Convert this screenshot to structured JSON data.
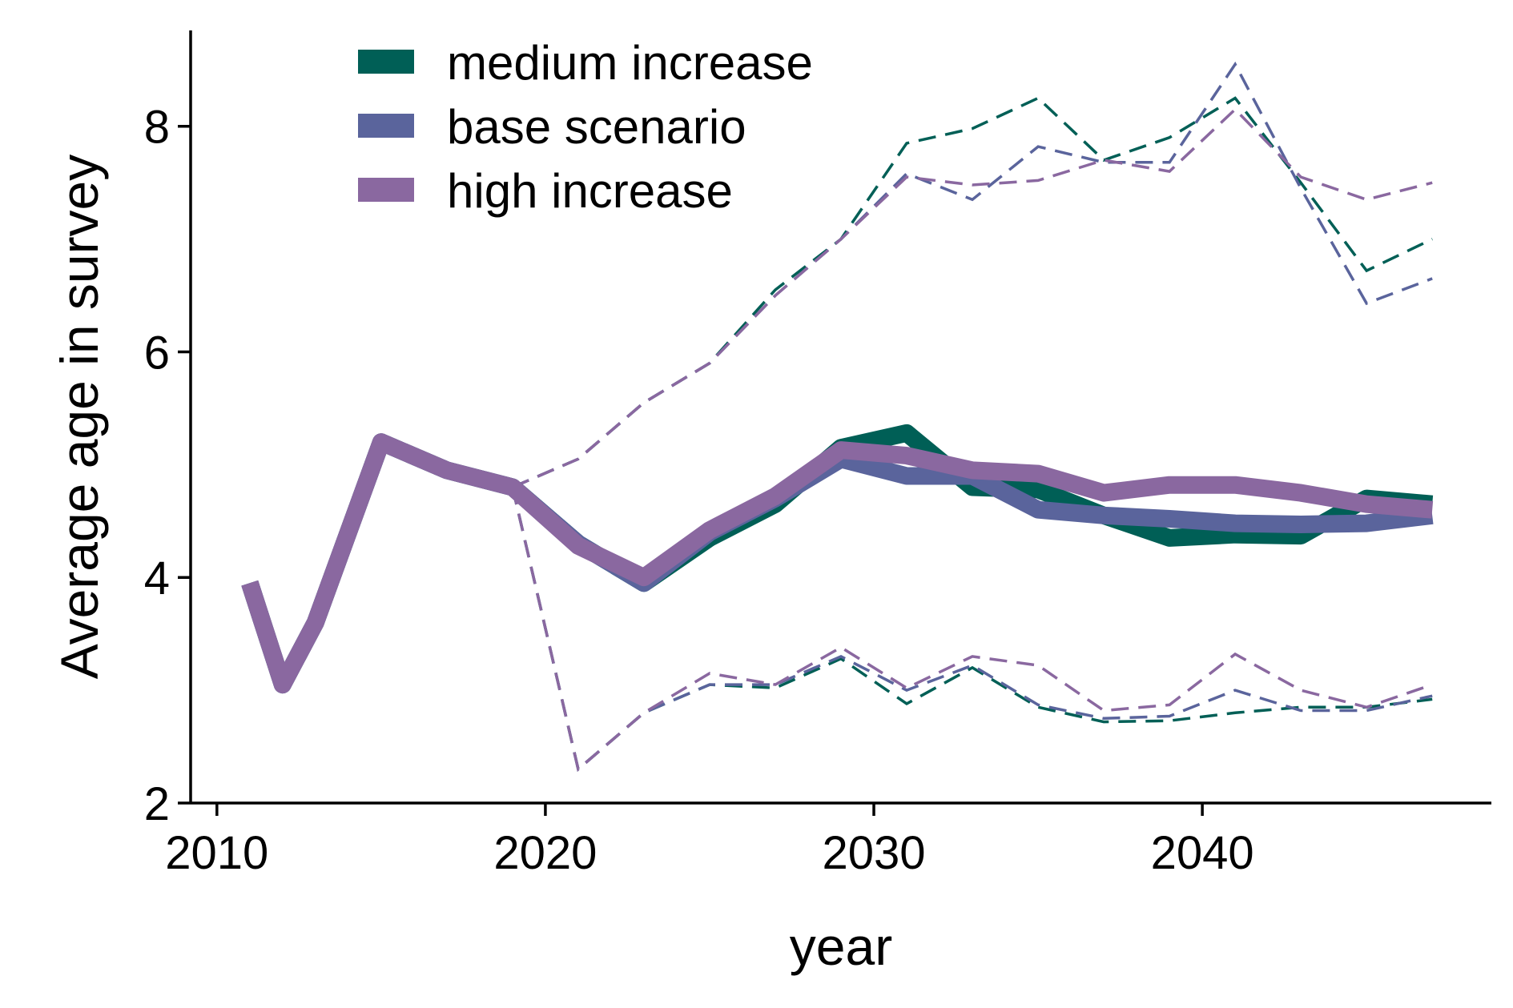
{
  "chart_data": {
    "type": "line",
    "title": "",
    "xlabel": "year",
    "ylabel": "Average age in survey",
    "xlim": [
      2009.2,
      2048.8
    ],
    "ylim": [
      2,
      8.85
    ],
    "xticks": [
      2010,
      2020,
      2030,
      2040
    ],
    "yticks": [
      2,
      4,
      6,
      8
    ],
    "grid": false,
    "legend_position": "top-left",
    "series": [
      {
        "name": "medium increase",
        "color": "#005f56",
        "x": [
          2011,
          2012,
          2013,
          2015,
          2017,
          2019,
          2021,
          2023,
          2025,
          2027,
          2029,
          2031,
          2033,
          2035,
          2037,
          2039,
          2041,
          2043,
          2045,
          2047
        ],
        "y": [
          3.95,
          3.05,
          3.6,
          5.2,
          4.95,
          4.8,
          4.3,
          3.95,
          4.35,
          4.65,
          5.15,
          5.28,
          4.8,
          4.78,
          4.55,
          4.35,
          4.38,
          4.37,
          4.7,
          4.65
        ],
        "lower": {
          "x": [
            2019,
            2021,
            2023,
            2025,
            2027,
            2029,
            2031,
            2033,
            2035,
            2037,
            2039,
            2041,
            2043,
            2045,
            2047
          ],
          "y": [
            4.8,
            2.3,
            2.8,
            3.05,
            3.02,
            3.28,
            2.88,
            3.2,
            2.85,
            2.72,
            2.73,
            2.8,
            2.85,
            2.85,
            2.92
          ]
        },
        "upper": {
          "x": [
            2019,
            2021,
            2023,
            2025,
            2027,
            2029,
            2031,
            2033,
            2035,
            2037,
            2039,
            2041,
            2043,
            2045,
            2047
          ],
          "y": [
            4.8,
            5.05,
            5.55,
            5.9,
            6.55,
            7.0,
            7.85,
            7.98,
            8.25,
            7.7,
            7.9,
            8.25,
            7.5,
            6.72,
            7.0
          ]
        }
      },
      {
        "name": "base scenario",
        "color": "#5a649c",
        "x": [
          2011,
          2012,
          2013,
          2015,
          2017,
          2019,
          2021,
          2023,
          2025,
          2027,
          2029,
          2031,
          2033,
          2035,
          2037,
          2039,
          2041,
          2043,
          2045,
          2047
        ],
        "y": [
          3.95,
          3.05,
          3.6,
          5.2,
          4.95,
          4.8,
          4.3,
          3.95,
          4.4,
          4.7,
          5.05,
          4.9,
          4.9,
          4.6,
          4.55,
          4.52,
          4.48,
          4.47,
          4.48,
          4.55
        ],
        "lower": {
          "x": [
            2019,
            2021,
            2023,
            2025,
            2027,
            2029,
            2031,
            2033,
            2035,
            2037,
            2039,
            2041,
            2043,
            2045,
            2047
          ],
          "y": [
            4.8,
            2.3,
            2.8,
            3.05,
            3.05,
            3.3,
            3.0,
            3.22,
            2.87,
            2.75,
            2.77,
            3.0,
            2.82,
            2.82,
            2.95
          ]
        },
        "upper": {
          "x": [
            2019,
            2021,
            2023,
            2025,
            2027,
            2029,
            2031,
            2033,
            2035,
            2037,
            2039,
            2041,
            2043,
            2045,
            2047
          ],
          "y": [
            4.8,
            5.05,
            5.55,
            5.9,
            6.5,
            7.0,
            7.58,
            7.35,
            7.82,
            7.68,
            7.68,
            8.55,
            7.45,
            6.43,
            6.65
          ]
        }
      },
      {
        "name": "high increase",
        "color": "#8a68a0",
        "x": [
          2011,
          2012,
          2013,
          2015,
          2017,
          2019,
          2021,
          2023,
          2025,
          2027,
          2029,
          2031,
          2033,
          2035,
          2037,
          2039,
          2041,
          2043,
          2045,
          2047
        ],
        "y": [
          3.95,
          3.05,
          3.6,
          5.2,
          4.95,
          4.8,
          4.28,
          4.0,
          4.42,
          4.72,
          5.13,
          5.08,
          4.95,
          4.92,
          4.75,
          4.82,
          4.82,
          4.75,
          4.65,
          4.6
        ],
        "lower": {
          "x": [
            2019,
            2021,
            2023,
            2025,
            2027,
            2029,
            2031,
            2033,
            2035,
            2037,
            2039,
            2041,
            2043,
            2045,
            2047
          ],
          "y": [
            4.8,
            2.3,
            2.8,
            3.15,
            3.05,
            3.38,
            3.02,
            3.3,
            3.22,
            2.82,
            2.87,
            3.32,
            3.0,
            2.85,
            3.05
          ]
        },
        "upper": {
          "x": [
            2019,
            2021,
            2023,
            2025,
            2027,
            2029,
            2031,
            2033,
            2035,
            2037,
            2039,
            2041,
            2043,
            2045,
            2047
          ],
          "y": [
            4.8,
            5.05,
            5.55,
            5.9,
            6.5,
            7.0,
            7.55,
            7.48,
            7.52,
            7.7,
            7.6,
            8.15,
            7.55,
            7.35,
            7.5
          ]
        }
      }
    ]
  }
}
